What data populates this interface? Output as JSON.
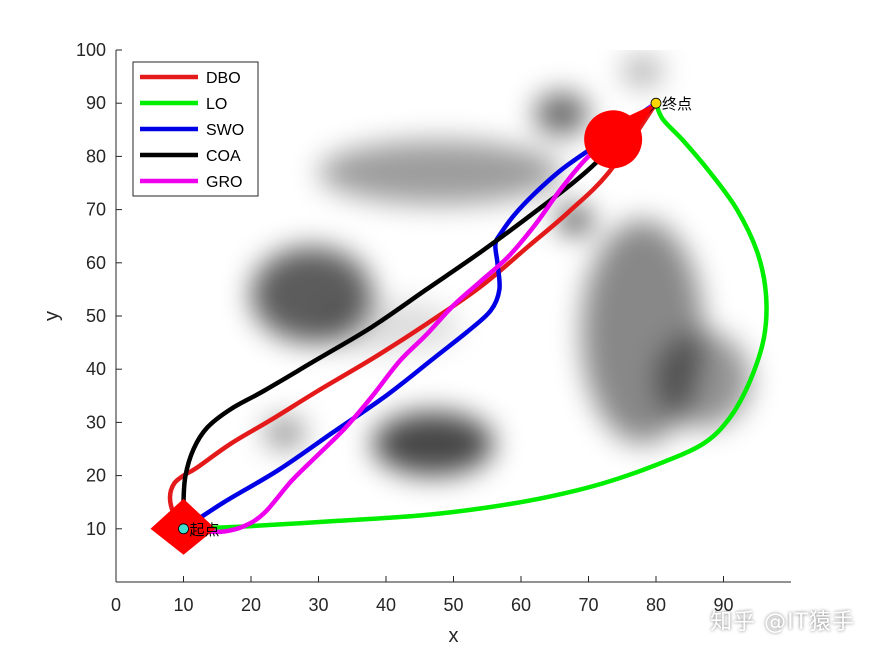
{
  "chart_data": {
    "type": "line",
    "xlabel": "x",
    "ylabel": "y",
    "xlim": [
      0,
      100
    ],
    "ylim": [
      0,
      100
    ],
    "xticks": [
      0,
      10,
      20,
      30,
      40,
      50,
      60,
      70,
      80,
      90
    ],
    "yticks": [
      10,
      20,
      30,
      40,
      50,
      60,
      70,
      80,
      90,
      100
    ],
    "grid": false,
    "legend_position": "top-left",
    "background": "grayscale terrain map with dark blurred obstacle blobs",
    "obstacles": [
      {
        "x": 29,
        "y": 54,
        "rx": 9,
        "ry": 9,
        "intensity": 0.75
      },
      {
        "x": 47,
        "y": 26,
        "rx": 9,
        "ry": 6,
        "intensity": 0.85
      },
      {
        "x": 25,
        "y": 28,
        "rx": 3,
        "ry": 3,
        "intensity": 0.5
      },
      {
        "x": 66,
        "y": 88,
        "rx": 4,
        "ry": 4,
        "intensity": 0.7
      },
      {
        "x": 68,
        "y": 68,
        "rx": 2.5,
        "ry": 2.5,
        "intensity": 0.9
      },
      {
        "x": 78,
        "y": 96,
        "rx": 3,
        "ry": 3,
        "intensity": 0.35
      },
      {
        "x": 48,
        "y": 77,
        "rx": 18,
        "ry": 6,
        "intensity": 0.45
      },
      {
        "x": 78,
        "y": 47,
        "rx": 9,
        "ry": 21,
        "intensity": 0.55
      },
      {
        "x": 87,
        "y": 38,
        "rx": 7,
        "ry": 9,
        "intensity": 0.5
      },
      {
        "x": 40,
        "y": 48,
        "rx": 11,
        "ry": 5,
        "intensity": 0.15
      }
    ],
    "start": {
      "x": 10,
      "y": 10,
      "label": "起点",
      "color": "#ff0000"
    },
    "goal": {
      "x": 80,
      "y": 90,
      "label": "终点",
      "color": "#ff0000"
    },
    "series": [
      {
        "name": "DBO",
        "color": "#e41a1a",
        "x": [
          10,
          8.5,
          8,
          8.6,
          10,
          12,
          17,
          23,
          30,
          38,
          46,
          54,
          61,
          67,
          73,
          80
        ],
        "y": [
          10,
          13,
          16,
          18.5,
          20,
          21.5,
          26,
          30.5,
          36,
          42,
          48.5,
          55.5,
          63,
          69.5,
          77,
          90
        ]
      },
      {
        "name": "LO",
        "color": "#00ee00",
        "x": [
          10,
          20,
          33,
          45,
          55,
          64,
          72,
          80,
          87,
          91,
          94,
          96,
          96.3,
          95,
          92,
          88,
          84,
          81,
          80
        ],
        "y": [
          10,
          10.5,
          11.5,
          12.5,
          14,
          16,
          18.5,
          22,
          26,
          31,
          38,
          46,
          54,
          62,
          70,
          77,
          83,
          87,
          90
        ]
      },
      {
        "name": "SWO",
        "color": "#0000e6",
        "x": [
          10,
          16,
          24,
          32,
          40,
          47,
          52,
          55.5,
          56.8,
          56.5,
          56.2,
          57,
          59,
          62,
          66,
          71,
          76,
          80
        ],
        "y": [
          10,
          15,
          21,
          28,
          35,
          42,
          47,
          51,
          55,
          60,
          63.5,
          65.5,
          69,
          73,
          77.5,
          82,
          86.5,
          90
        ]
      },
      {
        "name": "COA",
        "color": "#000000",
        "x": [
          10,
          10,
          10.3,
          11.5,
          13.5,
          17,
          22,
          30,
          38,
          46,
          54,
          62,
          70,
          80
        ],
        "y": [
          10,
          15,
          20,
          25,
          29,
          32.5,
          36,
          42,
          48,
          55,
          62,
          69.5,
          77.5,
          90
        ]
      },
      {
        "name": "GRO",
        "color": "#ee00ee",
        "x": [
          10,
          13,
          16,
          19,
          22,
          26,
          30,
          34,
          38,
          42,
          46,
          50,
          54,
          58,
          62,
          66,
          70,
          75,
          80
        ],
        "y": [
          10,
          9.5,
          9.5,
          10.5,
          13,
          19,
          24,
          29,
          35,
          41.5,
          46.5,
          52,
          56.5,
          61,
          67,
          74,
          80,
          85,
          90
        ]
      }
    ]
  },
  "watermark": "知乎 @IT猿手"
}
